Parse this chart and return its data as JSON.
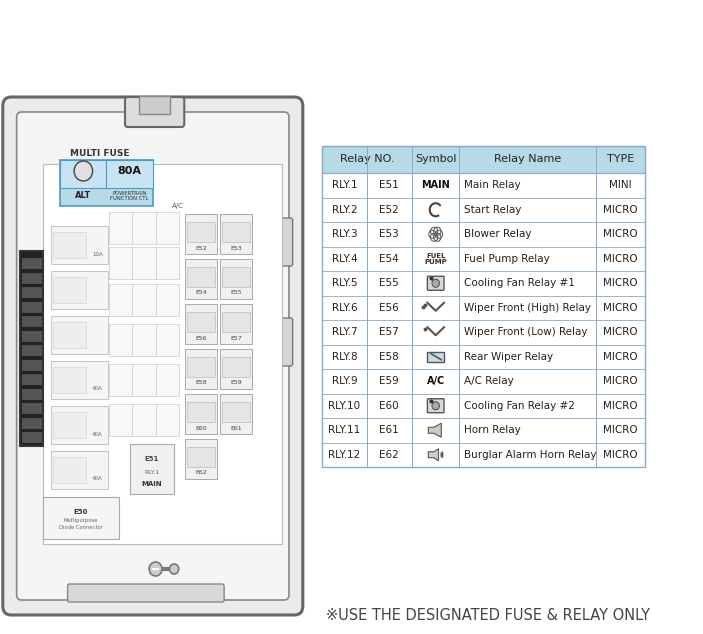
{
  "table_header": [
    "Relay NO.",
    "Symbol",
    "Relay Name",
    "TYPE"
  ],
  "table_col1": [
    "RLY.1",
    "RLY.2",
    "RLY.3",
    "RLY.4",
    "RLY.5",
    "RLY.6",
    "RLY.7",
    "RLY.8",
    "RLY.9",
    "RLY.10",
    "RLY.11",
    "RLY.12"
  ],
  "table_col2": [
    "E51",
    "E52",
    "E53",
    "E54",
    "E55",
    "E56",
    "E57",
    "E58",
    "E59",
    "E60",
    "E61",
    "E62"
  ],
  "table_col4": [
    "Main Relay",
    "Start Relay",
    "Blower Relay",
    "Fuel Pump Relay",
    "Cooling Fan Relay #1",
    "Wiper Front (High) Relay",
    "Wiper Front (Low) Relay",
    "Rear Wiper Relay",
    "A/C Relay",
    "Cooling Fan Relay #2",
    "Horn Relay",
    "Burglar Alarm Horn Relay"
  ],
  "table_col5": [
    "MINI",
    "MICRO",
    "MICRO",
    "MICRO",
    "MICRO",
    "MICRO",
    "MICRO",
    "MICRO",
    "MICRO",
    "MICRO",
    "MICRO",
    "MICRO"
  ],
  "header_bg": "#b8d9e8",
  "table_line_color": "#88aacc",
  "footer_text": "※USE THE DESIGNATED FUSE & RELAY ONLY",
  "footer_color": "#444444",
  "bg_color": "#ffffff",
  "box_edge": "#777777",
  "box_face": "#f8f8f8",
  "blue_fuse_face": "#b8d9e8",
  "blue_fuse_edge": "#4a9cc0",
  "left_conn_face": "#333333",
  "relay_face": "#f0f0f0",
  "relay_edge": "#999999"
}
